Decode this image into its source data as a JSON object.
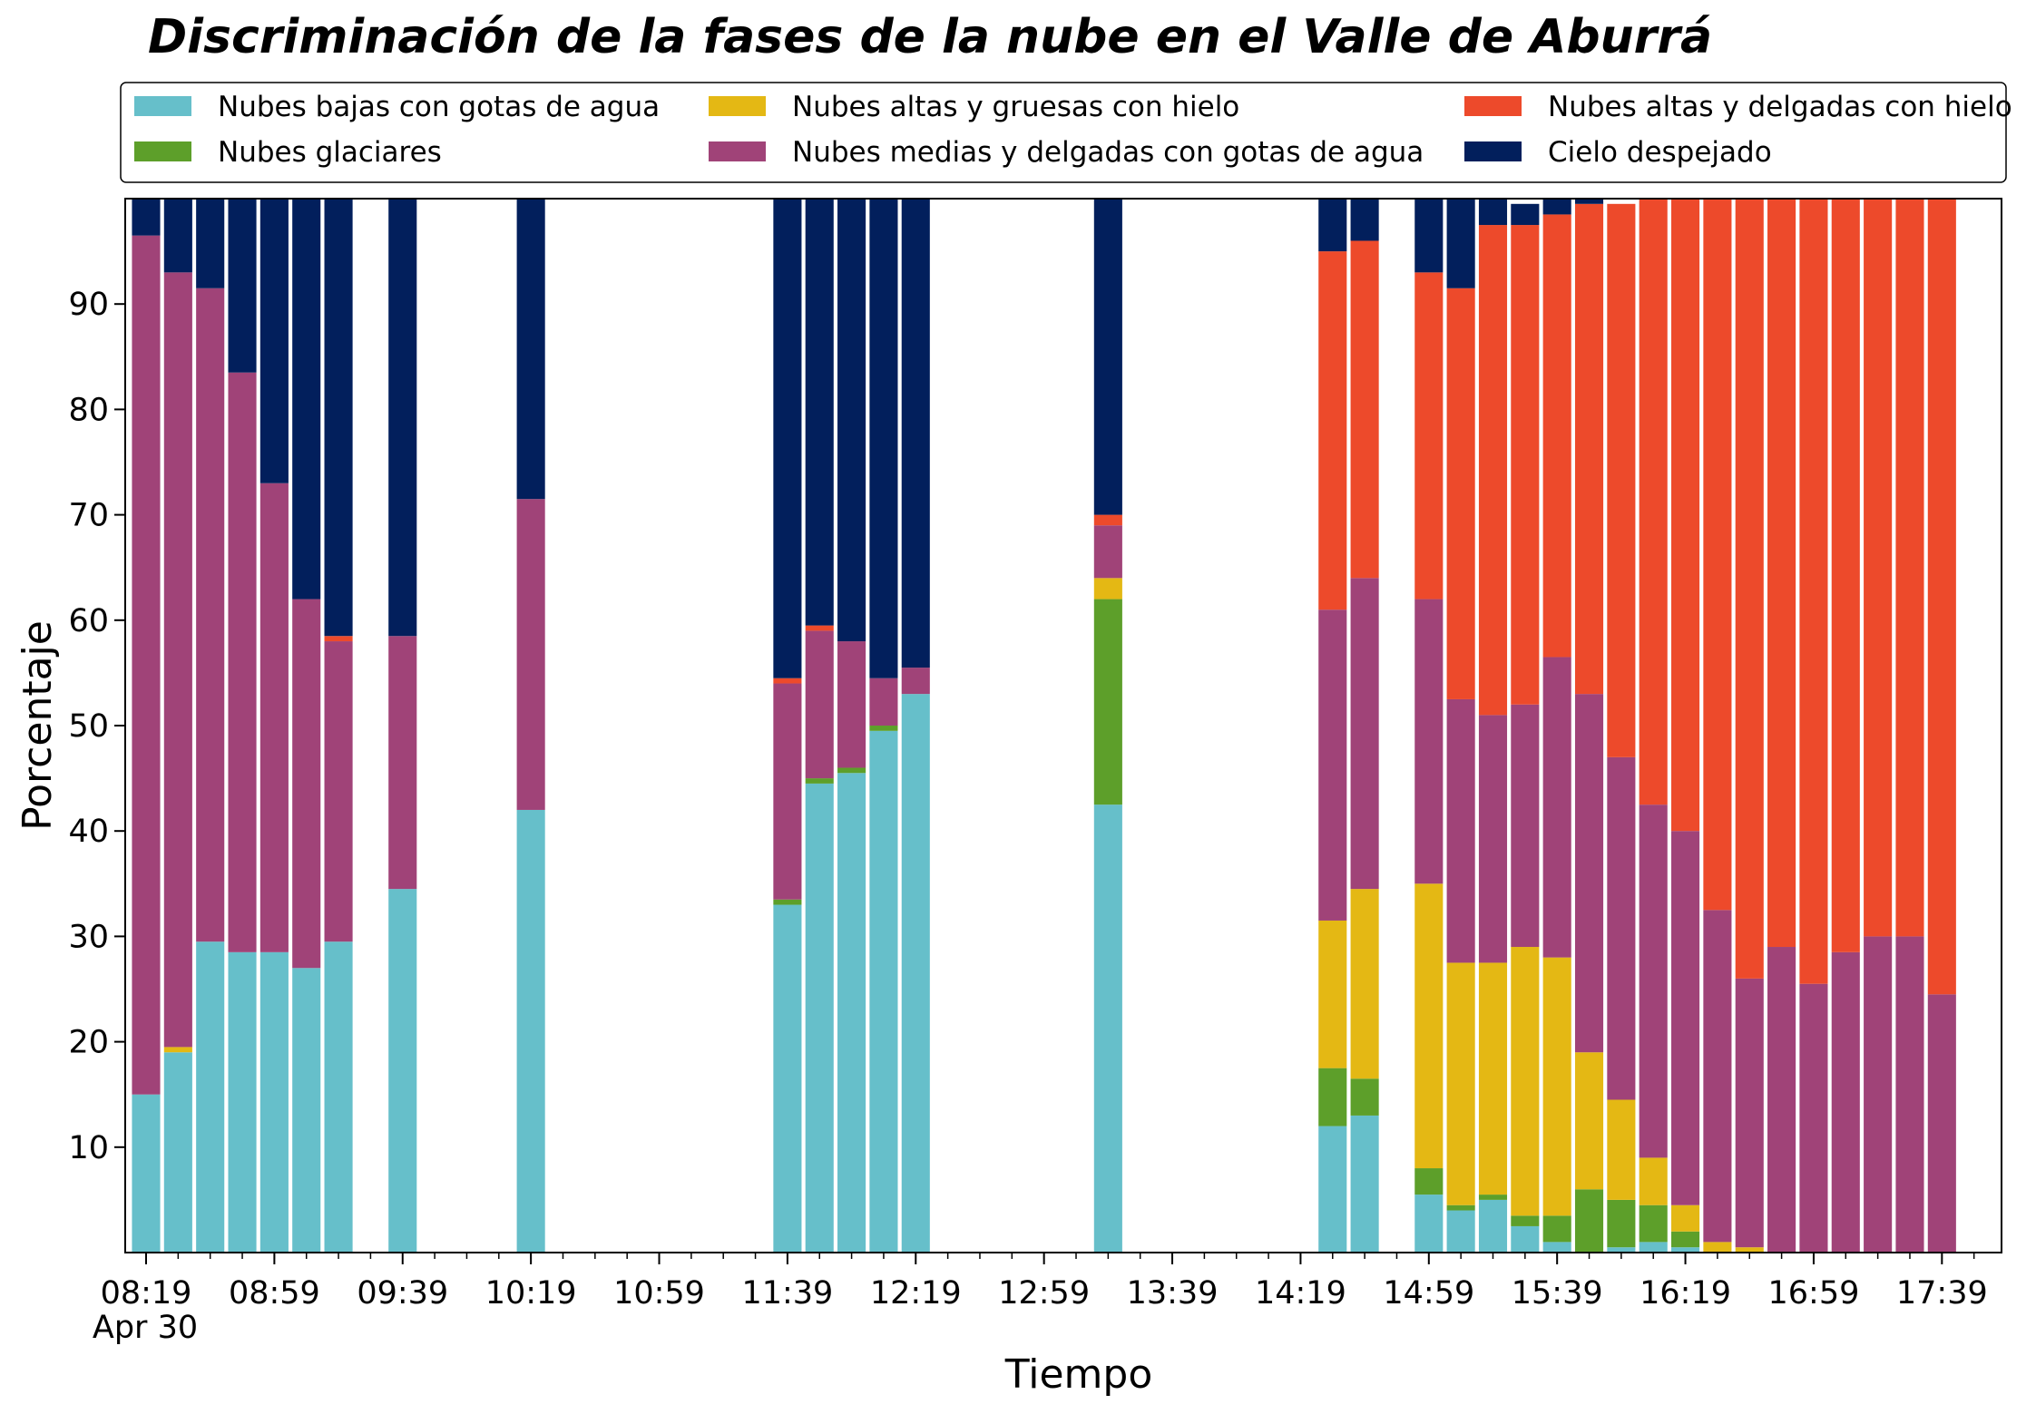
{
  "chart_data": {
    "type": "bar",
    "stacked": true,
    "title": "Discriminación de la fases de la nube en el Valle de Aburrá",
    "xlabel": "Tiempo",
    "ylabel": "Porcentaje",
    "ylim": [
      0,
      100
    ],
    "yticks": [
      10,
      20,
      30,
      40,
      50,
      60,
      70,
      80,
      90
    ],
    "x_major_ticks": [
      "08:19",
      "08:59",
      "09:39",
      "10:19",
      "10:59",
      "11:39",
      "12:19",
      "12:59",
      "13:39",
      "14:19",
      "14:59",
      "15:39",
      "16:19",
      "16:59",
      "17:39"
    ],
    "x_date_label": "Apr 30",
    "legend_position": "top",
    "grid": false,
    "times": [
      "08:19",
      "08:29",
      "08:39",
      "08:49",
      "08:59",
      "09:09",
      "09:19",
      "09:39",
      "10:19",
      "11:39",
      "11:49",
      "11:59",
      "12:09",
      "12:19",
      "13:19",
      "14:29",
      "14:39",
      "14:59",
      "15:09",
      "15:19",
      "15:29",
      "15:39",
      "15:49",
      "15:59",
      "16:09",
      "16:19",
      "16:29",
      "16:39",
      "16:49",
      "16:59",
      "17:09",
      "17:19",
      "17:29",
      "17:39"
    ],
    "series": [
      {
        "name": "Nubes bajas con gotas de agua",
        "color": "#66bfca",
        "values": [
          15,
          19,
          29.5,
          28.5,
          28.5,
          27,
          29.5,
          34.5,
          42,
          33,
          44.5,
          45.5,
          49.5,
          53,
          42.5,
          12,
          13,
          5.5,
          4,
          5,
          2.5,
          1,
          0,
          0.5,
          1,
          0.5,
          0,
          0,
          0,
          0,
          0,
          0,
          0,
          0
        ]
      },
      {
        "name": "Nubes glaciares",
        "color": "#5d9f2a",
        "values": [
          0,
          0,
          0,
          0,
          0,
          0,
          0,
          0,
          0,
          0.5,
          0.5,
          0.5,
          0.5,
          0,
          19.5,
          5.5,
          3.5,
          2.5,
          0.5,
          0.5,
          1,
          2.5,
          6,
          4.5,
          3.5,
          1.5,
          0,
          0,
          0,
          0,
          0,
          0,
          0,
          0
        ]
      },
      {
        "name": "Nubes altas y gruesas con hielo",
        "color": "#e4b814",
        "values": [
          0,
          0.5,
          0,
          0,
          0,
          0,
          0,
          0,
          0,
          0,
          0,
          0,
          0,
          0,
          2,
          14,
          18,
          27,
          23,
          22,
          25.5,
          24.5,
          13,
          9.5,
          4.5,
          2.5,
          1,
          0.5,
          0,
          0,
          0,
          0,
          0,
          0
        ]
      },
      {
        "name": "Nubes medias y delgadas con gotas de agua",
        "color": "#a04378",
        "values": [
          81.5,
          73.5,
          62,
          55,
          44.5,
          35,
          28.5,
          24,
          29.5,
          20.5,
          14,
          12,
          4.5,
          2.5,
          5,
          29.5,
          29.5,
          27,
          25,
          23.5,
          23,
          28.5,
          34,
          32.5,
          33.5,
          35.5,
          31.5,
          25.5,
          29,
          25.5,
          28.5,
          30,
          30,
          24.5
        ]
      },
      {
        "name": "Nubes altas y delgadas con hielo",
        "color": "#ed4a2b",
        "values": [
          0,
          0,
          0,
          0,
          0,
          0,
          0.5,
          0,
          0,
          0.5,
          0.5,
          0,
          0,
          0,
          1,
          34,
          32,
          31,
          39,
          46.5,
          45.5,
          42,
          46.5,
          52.5,
          57.5,
          60.5,
          67.5,
          74,
          71,
          74.5,
          71.5,
          70,
          70,
          75.5
        ]
      },
      {
        "name": "Cielo despejado",
        "color": "#021f5c",
        "values": [
          3.5,
          7,
          8.5,
          16.5,
          27,
          38,
          41.5,
          41.5,
          28.5,
          45.5,
          40.5,
          42,
          45.5,
          44.5,
          30,
          5,
          4,
          7,
          8.5,
          2.5,
          2,
          1.5,
          0.5,
          0,
          0,
          0,
          0,
          0,
          0,
          0,
          0,
          0,
          0,
          0
        ]
      }
    ]
  }
}
